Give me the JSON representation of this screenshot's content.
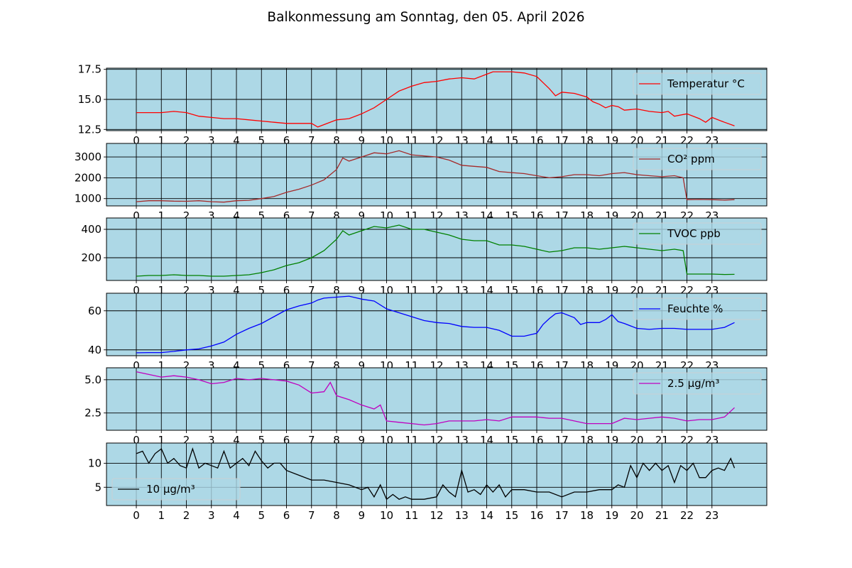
{
  "chart_title": "Balkonmessung am Sonntag, den 05. April 2026",
  "colors": {
    "panel_background": "#add8e6",
    "grid": "#000000"
  },
  "chart_data": [
    {
      "type": "line",
      "legend": "top-right",
      "grid": true,
      "x_ticks": [
        "0",
        "1",
        "2",
        "3",
        "4",
        "5",
        "6",
        "7",
        "8",
        "9",
        "10",
        "11",
        "12",
        "13",
        "14",
        "15",
        "16",
        "17",
        "18",
        "19",
        "20",
        "21",
        "22",
        "23"
      ],
      "ylim": [
        12.4,
        17.6
      ],
      "y_ticks": [
        "12.5",
        "15.0",
        "17.5"
      ],
      "y_tick_values": [
        12.5,
        15.0,
        17.5
      ],
      "series": [
        {
          "name": "Temperatur °C",
          "color": "#ff0000",
          "x": [
            0,
            0.5,
            1,
            1.5,
            2,
            2.5,
            3,
            3.5,
            4,
            4.5,
            5,
            5.5,
            6,
            6.5,
            7,
            7.25,
            7.5,
            8,
            8.5,
            9,
            9.5,
            10,
            10.5,
            11,
            11.5,
            12,
            12.5,
            13,
            13.5,
            14,
            14.25,
            14.5,
            15,
            15.5,
            16,
            16.25,
            16.5,
            16.75,
            17,
            17.5,
            18,
            18.25,
            18.5,
            18.75,
            19,
            19.25,
            19.5,
            20,
            20.5,
            21,
            21.25,
            21.5,
            22,
            22.5,
            22.75,
            23,
            23.5,
            23.9
          ],
          "values": [
            13.9,
            13.9,
            13.9,
            14.0,
            13.9,
            13.6,
            13.5,
            13.4,
            13.4,
            13.3,
            13.2,
            13.1,
            13.0,
            13.0,
            13.0,
            12.7,
            12.9,
            13.3,
            13.4,
            13.8,
            14.3,
            15.0,
            15.7,
            16.1,
            16.4,
            16.5,
            16.7,
            16.8,
            16.7,
            17.1,
            17.3,
            17.3,
            17.3,
            17.2,
            16.9,
            16.4,
            15.9,
            15.3,
            15.6,
            15.5,
            15.2,
            14.8,
            14.6,
            14.3,
            14.5,
            14.4,
            14.1,
            14.2,
            14.0,
            13.9,
            14.0,
            13.6,
            13.8,
            13.4,
            13.1,
            13.5,
            13.1,
            12.8
          ]
        }
      ]
    },
    {
      "type": "line",
      "legend": "top-right",
      "grid": true,
      "x_ticks": [
        "0",
        "1",
        "2",
        "3",
        "4",
        "5",
        "6",
        "7",
        "8",
        "9",
        "10",
        "11",
        "12",
        "13",
        "14",
        "15",
        "16",
        "17",
        "18",
        "19",
        "20",
        "21",
        "22",
        "23"
      ],
      "ylim": [
        650,
        3650
      ],
      "y_ticks": [
        "1000",
        "2000",
        "3000"
      ],
      "y_tick_values": [
        1000,
        2000,
        3000
      ],
      "series": [
        {
          "name": "CO² ppm",
          "color": "#a52a2a",
          "x": [
            0,
            0.5,
            1,
            1.5,
            2,
            2.5,
            3,
            3.5,
            4,
            4.5,
            5,
            5.5,
            6,
            6.5,
            7,
            7.5,
            8,
            8.25,
            8.5,
            9,
            9.5,
            10,
            10.5,
            11,
            11.5,
            12,
            12.5,
            13,
            13.5,
            14,
            14.5,
            15,
            15.5,
            16,
            16.5,
            17,
            17.5,
            18,
            18.5,
            19,
            19.5,
            20,
            20.5,
            21,
            21.5,
            21.85,
            22,
            22.5,
            23,
            23.5,
            23.9
          ],
          "values": [
            850,
            900,
            900,
            880,
            870,
            900,
            850,
            830,
            900,
            920,
            1000,
            1100,
            1300,
            1450,
            1650,
            1900,
            2400,
            2950,
            2800,
            3000,
            3200,
            3150,
            3300,
            3100,
            3050,
            3000,
            2850,
            2600,
            2550,
            2500,
            2300,
            2250,
            2200,
            2100,
            2000,
            2050,
            2150,
            2150,
            2100,
            2200,
            2250,
            2150,
            2100,
            2050,
            2100,
            2000,
            950,
            960,
            950,
            930,
            950
          ]
        }
      ]
    },
    {
      "type": "line",
      "legend": "top-right",
      "grid": true,
      "x_ticks": [
        "0",
        "1",
        "2",
        "3",
        "4",
        "5",
        "6",
        "7",
        "8",
        "9",
        "10",
        "11",
        "12",
        "13",
        "14",
        "15",
        "16",
        "17",
        "18",
        "19",
        "20",
        "21",
        "22",
        "23"
      ],
      "ylim": [
        40,
        480
      ],
      "y_ticks": [
        "200",
        "400"
      ],
      "y_tick_values": [
        200,
        400
      ],
      "series": [
        {
          "name": "TVOC ppb",
          "color": "#008000",
          "x": [
            0,
            0.5,
            1,
            1.5,
            2,
            2.5,
            3,
            3.5,
            4,
            4.5,
            5,
            5.5,
            6,
            6.5,
            7,
            7.5,
            8,
            8.25,
            8.5,
            9,
            9.5,
            10,
            10.5,
            11,
            11.5,
            12,
            12.5,
            13,
            13.5,
            14,
            14.5,
            15,
            15.5,
            16,
            16.5,
            17,
            17.5,
            18,
            18.5,
            19,
            19.5,
            20,
            20.5,
            21,
            21.5,
            21.85,
            22,
            22.5,
            23,
            23.5,
            23.9
          ],
          "values": [
            70,
            75,
            75,
            80,
            75,
            75,
            70,
            70,
            75,
            80,
            95,
            115,
            145,
            165,
            200,
            250,
            330,
            390,
            360,
            390,
            420,
            410,
            430,
            400,
            400,
            380,
            360,
            330,
            320,
            320,
            290,
            290,
            280,
            260,
            240,
            250,
            270,
            270,
            260,
            270,
            280,
            270,
            260,
            250,
            260,
            250,
            85,
            85,
            85,
            82,
            83
          ]
        }
      ]
    },
    {
      "type": "line",
      "legend": "top-right",
      "grid": true,
      "x_ticks": [
        "0",
        "1",
        "2",
        "3",
        "4",
        "5",
        "6",
        "7",
        "8",
        "9",
        "10",
        "11",
        "12",
        "13",
        "14",
        "15",
        "16",
        "17",
        "18",
        "19",
        "20",
        "21",
        "22",
        "23"
      ],
      "ylim": [
        37,
        69
      ],
      "y_ticks": [
        "40",
        "60"
      ],
      "y_tick_values": [
        40,
        60
      ],
      "series": [
        {
          "name": "Feuchte %",
          "color": "#0000ff",
          "x": [
            0,
            0.5,
            1,
            1.5,
            2,
            2.5,
            3,
            3.5,
            4,
            4.5,
            5,
            5.5,
            6,
            6.5,
            7,
            7.25,
            7.5,
            8,
            8.5,
            9,
            9.5,
            10,
            10.5,
            11,
            11.5,
            12,
            12.5,
            13,
            13.5,
            14,
            14.5,
            15,
            15.5,
            16,
            16.25,
            16.5,
            16.75,
            17,
            17.5,
            17.75,
            18,
            18.5,
            18.75,
            19,
            19.25,
            19.5,
            20,
            20.5,
            21,
            21.5,
            22,
            22.5,
            23,
            23.5,
            23.9
          ],
          "values": [
            38.5,
            38.6,
            38.6,
            39.2,
            40.0,
            40.5,
            42.0,
            44.0,
            48.0,
            51.0,
            53.5,
            57.0,
            60.5,
            62.5,
            64.0,
            65.5,
            66.5,
            67.0,
            67.5,
            66.0,
            65.0,
            61.0,
            59.0,
            57.0,
            55.0,
            54.0,
            53.5,
            52.0,
            51.5,
            51.5,
            50.0,
            47.0,
            47.0,
            48.5,
            53.0,
            56.0,
            58.5,
            59.0,
            56.5,
            53.0,
            54.0,
            54.0,
            55.5,
            58.0,
            54.5,
            53.5,
            51.0,
            50.5,
            51.0,
            51.0,
            50.5,
            50.5,
            50.5,
            51.5,
            54.0
          ]
        }
      ]
    },
    {
      "type": "line",
      "legend": "top-right",
      "grid": true,
      "x_ticks": [
        "0",
        "1",
        "2",
        "3",
        "4",
        "5",
        "6",
        "7",
        "8",
        "9",
        "10",
        "11",
        "12",
        "13",
        "14",
        "15",
        "16",
        "17",
        "18",
        "19",
        "20",
        "21",
        "22",
        "23"
      ],
      "ylim": [
        1.2,
        5.9
      ],
      "y_ticks": [
        "2.5",
        "5.0"
      ],
      "y_tick_values": [
        2.5,
        5.0
      ],
      "series": [
        {
          "name": "2.5 µg/m³",
          "color": "#bf00bf",
          "x": [
            0,
            0.5,
            1,
            1.5,
            2,
            2.5,
            3,
            3.5,
            4,
            4.5,
            5,
            5.5,
            6,
            6.5,
            7,
            7.5,
            7.75,
            8,
            8.5,
            9,
            9.5,
            9.75,
            10,
            10.5,
            11,
            11.5,
            12,
            12.5,
            13,
            13.5,
            14,
            14.5,
            15,
            15.5,
            16,
            16.5,
            17,
            17.5,
            18,
            18.5,
            19,
            19.5,
            20,
            20.5,
            21,
            21.5,
            22,
            22.5,
            23,
            23.5,
            23.9
          ],
          "values": [
            5.6,
            5.4,
            5.2,
            5.3,
            5.2,
            5.0,
            4.7,
            4.8,
            5.1,
            5.0,
            5.1,
            5.0,
            4.9,
            4.6,
            4.0,
            4.1,
            4.8,
            3.8,
            3.5,
            3.1,
            2.8,
            3.1,
            1.9,
            1.8,
            1.7,
            1.6,
            1.7,
            1.9,
            1.9,
            1.9,
            2.0,
            1.9,
            2.2,
            2.2,
            2.2,
            2.1,
            2.1,
            1.9,
            1.7,
            1.7,
            1.7,
            2.1,
            2.0,
            2.1,
            2.2,
            2.1,
            1.9,
            2.0,
            2.0,
            2.2,
            2.9
          ]
        }
      ]
    },
    {
      "type": "line",
      "legend": "upper-left",
      "grid": true,
      "x_ticks": [
        "0",
        "1",
        "2",
        "3",
        "4",
        "5",
        "6",
        "7",
        "8",
        "9",
        "10",
        "11",
        "12",
        "13",
        "14",
        "15",
        "16",
        "17",
        "18",
        "19",
        "20",
        "21",
        "22",
        "23"
      ],
      "ylim": [
        1.2,
        14.2
      ],
      "y_ticks": [
        "5",
        "10"
      ],
      "y_tick_values": [
        5,
        10
      ],
      "series": [
        {
          "name": "10 µg/m³",
          "color": "#000000",
          "x": [
            0,
            0.25,
            0.5,
            0.75,
            1,
            1.25,
            1.5,
            1.75,
            2,
            2.25,
            2.5,
            2.75,
            3,
            3.25,
            3.5,
            3.75,
            4,
            4.25,
            4.5,
            4.75,
            5,
            5.25,
            5.5,
            5.75,
            6,
            6.5,
            7,
            7.5,
            8,
            8.5,
            9,
            9.25,
            9.5,
            9.75,
            10,
            10.25,
            10.5,
            10.75,
            11,
            11.5,
            12,
            12.25,
            12.5,
            12.75,
            13,
            13.25,
            13.5,
            13.75,
            14,
            14.25,
            14.5,
            14.75,
            15,
            15.5,
            16,
            16.5,
            17,
            17.5,
            18,
            18.5,
            19,
            19.25,
            19.5,
            19.75,
            20,
            20.25,
            20.5,
            20.75,
            21,
            21.25,
            21.5,
            21.75,
            22,
            22.25,
            22.5,
            22.75,
            23,
            23.25,
            23.5,
            23.75,
            23.9
          ],
          "values": [
            12,
            12.5,
            10,
            12,
            13,
            10,
            11,
            9.5,
            9,
            13,
            9,
            10,
            9.5,
            9,
            12.5,
            9,
            10,
            11,
            9.5,
            12.5,
            10.5,
            9,
            10,
            10,
            8.5,
            7.5,
            6.5,
            6.5,
            6,
            5.5,
            4.5,
            5,
            3,
            5.5,
            2.5,
            3.5,
            2.5,
            3,
            2.5,
            2.5,
            3,
            5.5,
            4,
            3,
            8.5,
            4,
            4.5,
            3.5,
            5.5,
            4,
            5.5,
            3,
            4.5,
            4.5,
            4,
            4,
            3,
            4,
            4,
            4.5,
            4.5,
            5.5,
            5,
            9.5,
            7,
            10,
            8.5,
            10,
            8.5,
            9.5,
            6,
            9.5,
            8.5,
            10,
            7,
            7,
            8.5,
            9,
            8.5,
            11,
            9
          ]
        }
      ]
    }
  ]
}
